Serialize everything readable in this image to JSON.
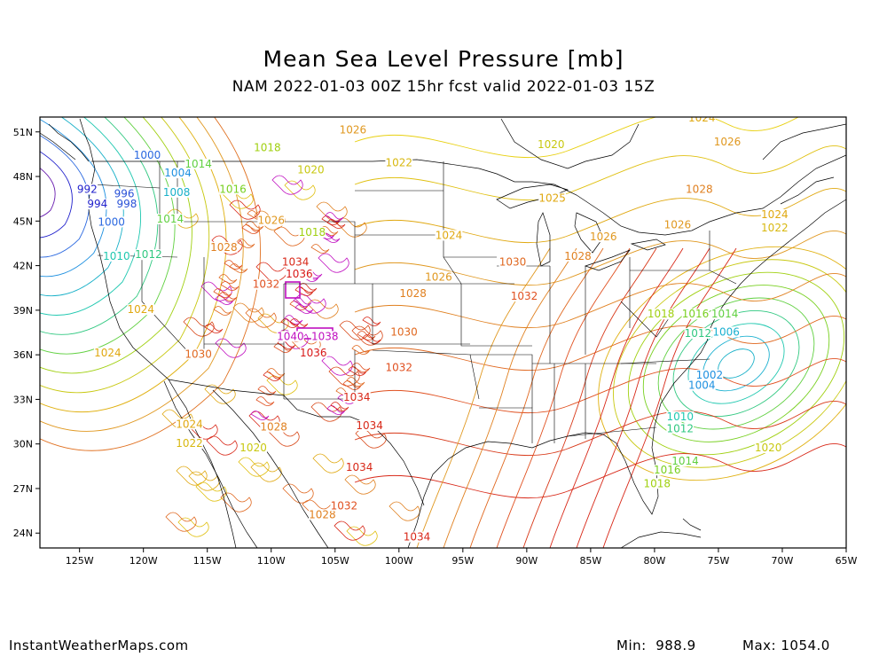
{
  "title": "Mean Sea Level Pressure [mb]",
  "subtitle": "NAM 2022-01-03 00Z 15hr fcst valid 2022-01-03 15Z",
  "footer": {
    "credit": "InstantWeatherMaps.com",
    "min_label": "Min:",
    "min_value": "988.9",
    "max_label": "Max:",
    "max_value": "1054.0"
  },
  "map": {
    "lon_ticks": [
      "125W",
      "120W",
      "115W",
      "110W",
      "105W",
      "100W",
      "95W",
      "90W",
      "85W",
      "80W",
      "75W",
      "70W",
      "65W"
    ],
    "lat_ticks": [
      "51N",
      "48N",
      "45N",
      "42N",
      "39N",
      "36N",
      "33N",
      "30N",
      "27N",
      "24N"
    ],
    "pressure_labels": [
      {
        "text": "992",
        "lon": -124.4,
        "lat": 46.9,
        "color": "#2222cc"
      },
      {
        "text": "994",
        "lon": -123.6,
        "lat": 45.9,
        "color": "#2222cc"
      },
      {
        "text": "996",
        "lon": -121.5,
        "lat": 46.6,
        "color": "#2a52d8"
      },
      {
        "text": "998",
        "lon": -121.3,
        "lat": 45.9,
        "color": "#2a52d8"
      },
      {
        "text": "1000",
        "lon": -119.7,
        "lat": 49.2,
        "color": "#2a68e0"
      },
      {
        "text": "1000",
        "lon": -122.5,
        "lat": 44.7,
        "color": "#2a68e0"
      },
      {
        "text": "1004",
        "lon": -117.3,
        "lat": 48.0,
        "color": "#1e90e0"
      },
      {
        "text": "1008",
        "lon": -117.4,
        "lat": 46.7,
        "color": "#18b0c8"
      },
      {
        "text": "1010",
        "lon": -122.1,
        "lat": 42.4,
        "color": "#20c8b0"
      },
      {
        "text": "1012",
        "lon": -119.6,
        "lat": 42.5,
        "color": "#30c880"
      },
      {
        "text": "1012",
        "lon": -76.6,
        "lat": 37.2,
        "color": "#30c880"
      },
      {
        "text": "1012",
        "lon": -78.0,
        "lat": 30.8,
        "color": "#30c880"
      },
      {
        "text": "1014",
        "lon": -115.7,
        "lat": 48.6,
        "color": "#60d040"
      },
      {
        "text": "1014",
        "lon": -117.9,
        "lat": 44.9,
        "color": "#60d040"
      },
      {
        "text": "1014",
        "lon": -74.5,
        "lat": 38.5,
        "color": "#60d040"
      },
      {
        "text": "1014",
        "lon": -77.6,
        "lat": 28.6,
        "color": "#60d040"
      },
      {
        "text": "1016",
        "lon": -113.0,
        "lat": 46.9,
        "color": "#78d020"
      },
      {
        "text": "1016",
        "lon": -76.8,
        "lat": 38.5,
        "color": "#78d020"
      },
      {
        "text": "1016",
        "lon": -79.0,
        "lat": 28.0,
        "color": "#78d020"
      },
      {
        "text": "1018",
        "lon": -110.3,
        "lat": 49.7,
        "color": "#a0d010"
      },
      {
        "text": "1018",
        "lon": -106.8,
        "lat": 44.0,
        "color": "#a0d010"
      },
      {
        "text": "1018",
        "lon": -79.5,
        "lat": 38.5,
        "color": "#a0d010"
      },
      {
        "text": "1018",
        "lon": -79.8,
        "lat": 27.1,
        "color": "#a0d010"
      },
      {
        "text": "1020",
        "lon": -106.9,
        "lat": 48.2,
        "color": "#c8c810"
      },
      {
        "text": "1020",
        "lon": -88.1,
        "lat": 49.9,
        "color": "#c8c810"
      },
      {
        "text": "1020",
        "lon": -111.4,
        "lat": 29.5,
        "color": "#c8c810"
      },
      {
        "text": "1020",
        "lon": -71.1,
        "lat": 29.5,
        "color": "#c8c810"
      },
      {
        "text": "1022",
        "lon": -100.0,
        "lat": 48.7,
        "color": "#d8b810"
      },
      {
        "text": "1022",
        "lon": -116.4,
        "lat": 29.8,
        "color": "#d8b810"
      },
      {
        "text": "1022",
        "lon": -70.6,
        "lat": 44.3,
        "color": "#d8b810"
      },
      {
        "text": "1024",
        "lon": -120.2,
        "lat": 38.8,
        "color": "#e0a810"
      },
      {
        "text": "1024",
        "lon": -122.8,
        "lat": 35.9,
        "color": "#e0a810"
      },
      {
        "text": "1024",
        "lon": -116.4,
        "lat": 31.1,
        "color": "#e0a810"
      },
      {
        "text": "1024",
        "lon": -96.1,
        "lat": 43.8,
        "color": "#e0a810"
      },
      {
        "text": "1024",
        "lon": -76.3,
        "lat": 51.7,
        "color": "#e0a810"
      },
      {
        "text": "1024",
        "lon": -70.6,
        "lat": 45.2,
        "color": "#e0a810"
      },
      {
        "text": "1025",
        "lon": -88.0,
        "lat": 46.3,
        "color": "#e0a810"
      },
      {
        "text": "1026",
        "lon": -103.6,
        "lat": 50.9,
        "color": "#e09820"
      },
      {
        "text": "1026",
        "lon": -96.9,
        "lat": 41.0,
        "color": "#e09820"
      },
      {
        "text": "1026",
        "lon": -84.0,
        "lat": 43.7,
        "color": "#e09820"
      },
      {
        "text": "1026",
        "lon": -78.2,
        "lat": 44.5,
        "color": "#e09820"
      },
      {
        "text": "1026",
        "lon": -74.3,
        "lat": 50.1,
        "color": "#e09820"
      },
      {
        "text": "1026",
        "lon": -110.0,
        "lat": 44.8,
        "color": "#e09820"
      },
      {
        "text": "1028",
        "lon": -76.5,
        "lat": 46.9,
        "color": "#e08020"
      },
      {
        "text": "1028",
        "lon": -86.0,
        "lat": 42.4,
        "color": "#e08020"
      },
      {
        "text": "1028",
        "lon": -98.9,
        "lat": 39.9,
        "color": "#e08020"
      },
      {
        "text": "1028",
        "lon": -113.7,
        "lat": 43.0,
        "color": "#e08020"
      },
      {
        "text": "1028",
        "lon": -109.8,
        "lat": 30.9,
        "color": "#e08020"
      },
      {
        "text": "1028",
        "lon": -106.0,
        "lat": 25.0,
        "color": "#e08020"
      },
      {
        "text": "1030",
        "lon": -91.1,
        "lat": 42.0,
        "color": "#e06820"
      },
      {
        "text": "1030",
        "lon": -99.6,
        "lat": 37.3,
        "color": "#e06820"
      },
      {
        "text": "1030",
        "lon": -115.7,
        "lat": 35.8,
        "color": "#e06820"
      },
      {
        "text": "1032",
        "lon": -90.2,
        "lat": 39.7,
        "color": "#e05020"
      },
      {
        "text": "1032",
        "lon": -100.0,
        "lat": 34.9,
        "color": "#e05020"
      },
      {
        "text": "1032",
        "lon": -110.4,
        "lat": 40.5,
        "color": "#e05020"
      },
      {
        "text": "1032",
        "lon": -104.3,
        "lat": 25.6,
        "color": "#e05020"
      },
      {
        "text": "1034",
        "lon": -108.1,
        "lat": 42.0,
        "color": "#d82818"
      },
      {
        "text": "1034",
        "lon": -103.3,
        "lat": 32.9,
        "color": "#d82818"
      },
      {
        "text": "1034",
        "lon": -102.3,
        "lat": 31.0,
        "color": "#d82818"
      },
      {
        "text": "1034",
        "lon": -103.1,
        "lat": 28.2,
        "color": "#d82818"
      },
      {
        "text": "1034",
        "lon": -98.6,
        "lat": 23.5,
        "color": "#d82818"
      },
      {
        "text": "1036",
        "lon": -106.7,
        "lat": 35.9,
        "color": "#d81818"
      },
      {
        "text": "1036",
        "lon": -107.8,
        "lat": 41.2,
        "color": "#d81818"
      },
      {
        "text": "1038",
        "lon": -105.8,
        "lat": 37.0,
        "color": "#c010c0"
      },
      {
        "text": "1040",
        "lon": -108.5,
        "lat": 37.0,
        "color": "#c010c0"
      },
      {
        "text": "1002",
        "lon": -75.7,
        "lat": 34.4,
        "color": "#1e90e0"
      },
      {
        "text": "1004",
        "lon": -76.3,
        "lat": 33.7,
        "color": "#1e90e0"
      },
      {
        "text": "1006",
        "lon": -74.4,
        "lat": 37.3,
        "color": "#1ab0d0"
      },
      {
        "text": "1010",
        "lon": -78.0,
        "lat": 31.6,
        "color": "#20c8b0"
      }
    ]
  }
}
